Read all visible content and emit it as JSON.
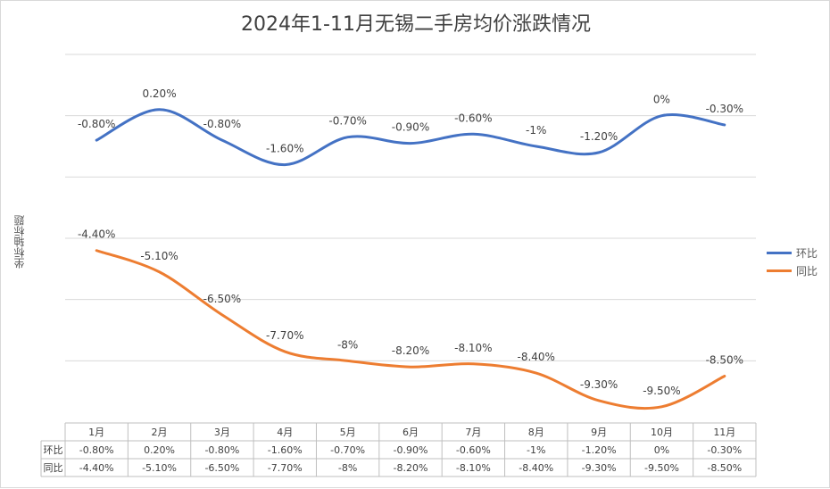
{
  "chart_data": {
    "type": "line",
    "title": "2024年1-11月无锡二手房均价涨跌情况",
    "ylabel": "坐标轴标题",
    "categories": [
      "1月",
      "2月",
      "3月",
      "4月",
      "5月",
      "6月",
      "7月",
      "8月",
      "9月",
      "10月",
      "11月"
    ],
    "series": [
      {
        "name": "环比",
        "color": "#4472c4",
        "values": [
          -0.8,
          0.2,
          -0.8,
          -1.6,
          -0.7,
          -0.9,
          -0.6,
          -1,
          -1.2,
          0,
          -0.3
        ],
        "labels": [
          "-0.80%",
          "0.20%",
          "-0.80%",
          "-1.60%",
          "-0.70%",
          "-0.90%",
          "-0.60%",
          "-1%",
          "-1.20%",
          "0%",
          "-0.30%"
        ]
      },
      {
        "name": "同比",
        "color": "#ed7d31",
        "values": [
          -4.4,
          -5.1,
          -6.5,
          -7.7,
          -8,
          -8.2,
          -8.1,
          -8.4,
          -9.3,
          -9.5,
          -8.5
        ],
        "labels": [
          "-4.40%",
          "-5.10%",
          "-6.50%",
          "-7.70%",
          "-8%",
          "-8.20%",
          "-8.10%",
          "-8.40%",
          "-9.30%",
          "-9.50%",
          "-8.50%"
        ]
      }
    ],
    "ylim": [
      -10,
      2
    ],
    "grid": true,
    "legend": "right",
    "data_table": true
  }
}
